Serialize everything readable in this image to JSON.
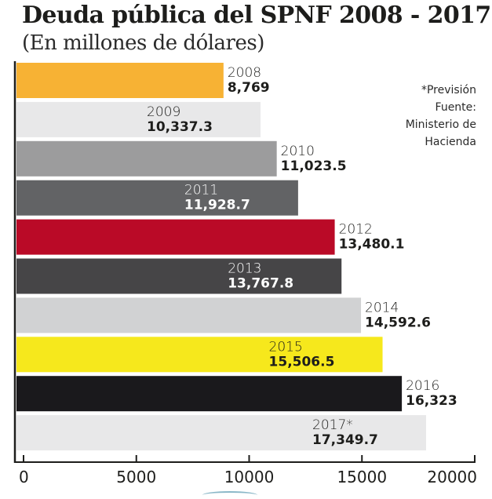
{
  "chart_data": {
    "type": "bar",
    "orientation": "horizontal",
    "title": "Deuda pública del SPNF 2008 - 2017",
    "subtitle": "(En millones de dólares)",
    "xlabel": "",
    "ylabel": "",
    "xlim": [
      0,
      20000
    ],
    "grid": false,
    "categories": [
      "2008",
      "2009",
      "2010",
      "2011",
      "2012",
      "2013",
      "2014",
      "2015",
      "2016",
      "2017*"
    ],
    "values": [
      8769,
      10337.3,
      11023.5,
      11928.7,
      13480.1,
      13767.8,
      14592.6,
      15506.5,
      16323,
      17349.7
    ],
    "value_labels": [
      "8,769",
      "10,337.3",
      "11,023.5",
      "11,928.7",
      "13,480.1",
      "13,767.8",
      "14,592.6",
      "15,506.5",
      "16,323",
      "17,349.7"
    ],
    "label_inside": [
      false,
      true,
      false,
      true,
      false,
      true,
      false,
      true,
      false,
      true
    ],
    "colors": [
      "#F7B234",
      "#E8E8E9",
      "#9C9C9D",
      "#626365",
      "#BA0A27",
      "#464547",
      "#D1D2D3",
      "#F6E81C",
      "#1A191C",
      "#E8E8E9"
    ],
    "label_colors": [
      "#1d1d1b",
      "#1d1d1b",
      "#1d1d1b",
      "#ffffff",
      "#1d1d1b",
      "#ffffff",
      "#1d1d1b",
      "#1d1d1b",
      "#1d1d1b",
      "#1d1d1b"
    ],
    "x_ticks": [
      0,
      5000,
      10000,
      15000,
      20000
    ],
    "x_tick_labels": [
      "0",
      "5000",
      "10000",
      "15000",
      "20000"
    ],
    "annotations": [
      "*Previsión",
      "Fuente:",
      "Ministerio de",
      "Hacienda"
    ]
  }
}
